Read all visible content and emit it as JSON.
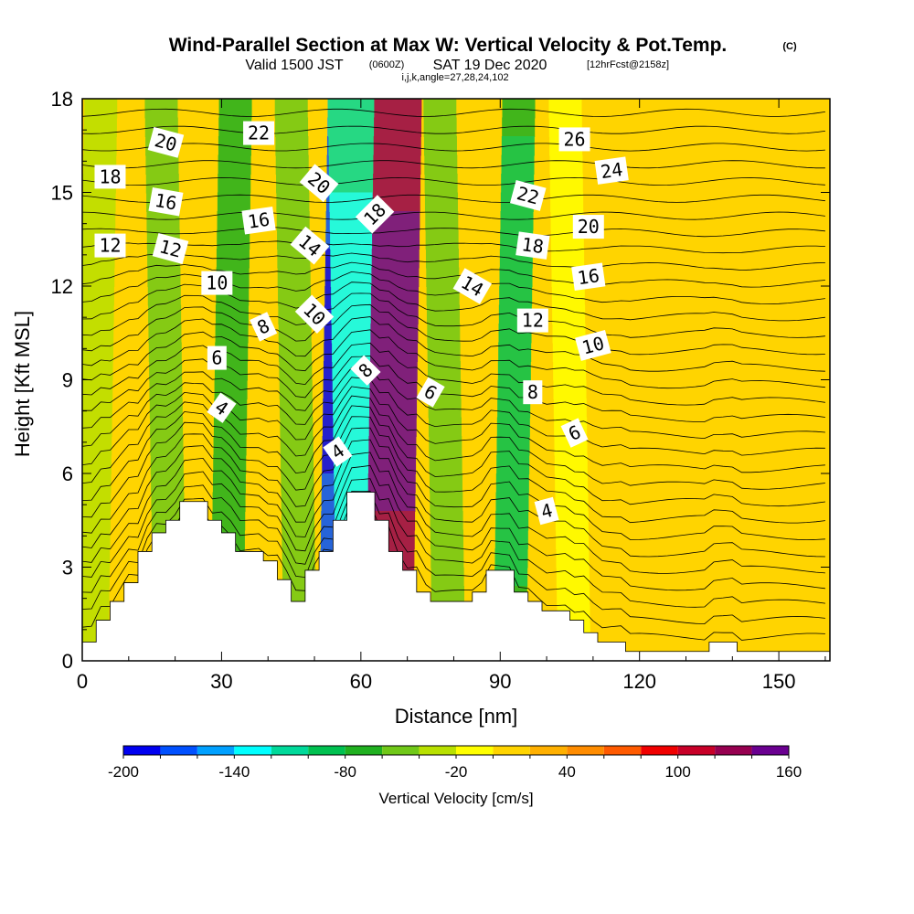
{
  "title": {
    "main": "Wind-Parallel Section at Max W: Vertical Velocity & Pot.Temp.",
    "copyright": "(C)",
    "valid_prefix": "Valid 1500 JST",
    "valid_utc": "(0600Z)",
    "valid_date": "SAT 19 Dec 2020",
    "forecast": "[12hrFcst@2158z]",
    "params": "i,j,k,angle=27,28,24,102"
  },
  "chart_data": {
    "type": "heatmap",
    "xlabel": "Distance [nm]",
    "ylabel": "Height [Kft MSL]",
    "xlim": [
      0,
      161
    ],
    "ylim": [
      0,
      18
    ],
    "x_ticks": [
      0,
      30,
      60,
      90,
      120,
      150
    ],
    "y_ticks": [
      0,
      3,
      6,
      9,
      12,
      15,
      18
    ],
    "colorbar": {
      "title": "Vertical Velocity [cm/s]",
      "levels": [
        -200,
        -180,
        -160,
        -140,
        -120,
        -100,
        -80,
        -60,
        -40,
        -20,
        0,
        20,
        40,
        60,
        80,
        100,
        120,
        140,
        160
      ],
      "tick_labels": [
        "-200",
        "-140",
        "-80",
        "-20",
        "40",
        "100",
        "160"
      ],
      "tick_values": [
        -200,
        -140,
        -80,
        -20,
        40,
        100,
        160
      ],
      "colors": [
        "#0000f0",
        "#0050ff",
        "#00a0ff",
        "#00ffff",
        "#00d99a",
        "#00c050",
        "#20b020",
        "#70c818",
        "#b8e000",
        "#ffff00",
        "#ffd400",
        "#ffb000",
        "#ff8c00",
        "#ff5a00",
        "#f00000",
        "#c80028",
        "#960050",
        "#6a0090"
      ]
    },
    "velocity_bands": [
      {
        "x": 3,
        "w": -40
      },
      {
        "x": 18,
        "w": -60
      },
      {
        "x": 32,
        "w": -80
      },
      {
        "x": 46,
        "w": -60
      },
      {
        "x": 57,
        "w": -200
      },
      {
        "x": 59,
        "w": -140
      },
      {
        "x": 67,
        "w": 160
      },
      {
        "x": 78,
        "w": -60
      },
      {
        "x": 93,
        "w": -100
      },
      {
        "x": 105,
        "w": -20
      }
    ],
    "terrain": [
      {
        "x": 0,
        "y": 0.6
      },
      {
        "x": 3,
        "y": 1.3
      },
      {
        "x": 6,
        "y": 1.9
      },
      {
        "x": 9,
        "y": 2.5
      },
      {
        "x": 12,
        "y": 3.5
      },
      {
        "x": 15,
        "y": 4.1
      },
      {
        "x": 18,
        "y": 4.5
      },
      {
        "x": 21,
        "y": 5.1
      },
      {
        "x": 27,
        "y": 4.5
      },
      {
        "x": 30,
        "y": 4.1
      },
      {
        "x": 33,
        "y": 3.5
      },
      {
        "x": 39,
        "y": 3.2
      },
      {
        "x": 42,
        "y": 2.6
      },
      {
        "x": 45,
        "y": 1.9
      },
      {
        "x": 48,
        "y": 2.9
      },
      {
        "x": 51,
        "y": 3.5
      },
      {
        "x": 54,
        "y": 4.5
      },
      {
        "x": 57,
        "y": 5.4
      },
      {
        "x": 63,
        "y": 4.5
      },
      {
        "x": 66,
        "y": 3.5
      },
      {
        "x": 69,
        "y": 2.9
      },
      {
        "x": 72,
        "y": 2.2
      },
      {
        "x": 75,
        "y": 1.9
      },
      {
        "x": 84,
        "y": 2.2
      },
      {
        "x": 87,
        "y": 2.9
      },
      {
        "x": 93,
        "y": 2.2
      },
      {
        "x": 96,
        "y": 1.9
      },
      {
        "x": 99,
        "y": 1.6
      },
      {
        "x": 105,
        "y": 1.3
      },
      {
        "x": 108,
        "y": 0.9
      },
      {
        "x": 111,
        "y": 0.6
      },
      {
        "x": 117,
        "y": 0.3
      },
      {
        "x": 135,
        "y": 0.6
      },
      {
        "x": 141,
        "y": 0.3
      },
      {
        "x": 161,
        "y": 0.3
      }
    ],
    "isentrope_labels": [
      {
        "text": "20",
        "x": 18,
        "y": 16.6,
        "angle": 15
      },
      {
        "text": "18",
        "x": 6,
        "y": 15.5,
        "angle": 0
      },
      {
        "text": "16",
        "x": 18,
        "y": 14.7,
        "angle": 10
      },
      {
        "text": "12",
        "x": 6,
        "y": 13.3,
        "angle": 0
      },
      {
        "text": "12",
        "x": 19,
        "y": 13.2,
        "angle": 15
      },
      {
        "text": "22",
        "x": 38,
        "y": 16.9,
        "angle": 0
      },
      {
        "text": "16",
        "x": 38,
        "y": 14.1,
        "angle": -8
      },
      {
        "text": "10",
        "x": 29,
        "y": 12.1,
        "angle": 0
      },
      {
        "text": "8",
        "x": 39,
        "y": 10.7,
        "angle": -25
      },
      {
        "text": "6",
        "x": 29,
        "y": 9.7,
        "angle": 0
      },
      {
        "text": "4",
        "x": 30,
        "y": 8.1,
        "angle": 35
      },
      {
        "text": "20",
        "x": 51,
        "y": 15.3,
        "angle": 40
      },
      {
        "text": "14",
        "x": 49,
        "y": 13.3,
        "angle": 40
      },
      {
        "text": "10",
        "x": 50,
        "y": 11.1,
        "angle": 45
      },
      {
        "text": "4",
        "x": 55,
        "y": 6.7,
        "angle": -35
      },
      {
        "text": "18",
        "x": 63,
        "y": 14.3,
        "angle": -45
      },
      {
        "text": "8",
        "x": 61,
        "y": 9.3,
        "angle": -45
      },
      {
        "text": "6",
        "x": 75,
        "y": 8.6,
        "angle": 30
      },
      {
        "text": "14",
        "x": 84,
        "y": 12.0,
        "angle": 30
      },
      {
        "text": "26",
        "x": 106,
        "y": 16.7,
        "angle": 0
      },
      {
        "text": "24",
        "x": 114,
        "y": 15.7,
        "angle": -8
      },
      {
        "text": "22",
        "x": 96,
        "y": 14.9,
        "angle": 15
      },
      {
        "text": "20",
        "x": 109,
        "y": 13.9,
        "angle": 0
      },
      {
        "text": "18",
        "x": 97,
        "y": 13.3,
        "angle": 8
      },
      {
        "text": "16",
        "x": 109,
        "y": 12.3,
        "angle": -8
      },
      {
        "text": "12",
        "x": 97,
        "y": 10.9,
        "angle": 0
      },
      {
        "text": "10",
        "x": 110,
        "y": 10.1,
        "angle": -15
      },
      {
        "text": "8",
        "x": 97,
        "y": 8.6,
        "angle": 0
      },
      {
        "text": "6",
        "x": 106,
        "y": 7.3,
        "angle": -25
      },
      {
        "text": "4",
        "x": 100,
        "y": 4.8,
        "angle": -15
      }
    ]
  }
}
